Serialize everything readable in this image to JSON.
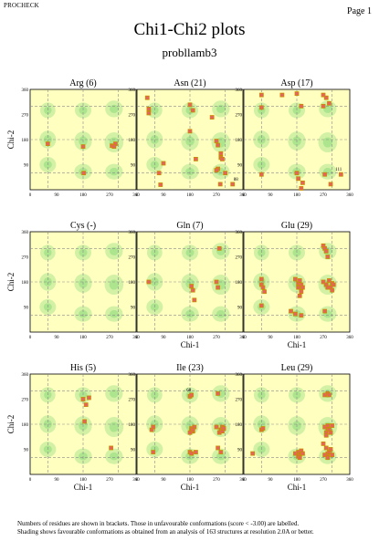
{
  "header": {
    "program": "PROCHECK",
    "page_label": "Page 1",
    "title": "Chi1-Chi2 plots",
    "subtitle": "probllamb3"
  },
  "footnote": {
    "line1": "Numbers of residues are shown in brackets. Those in unfavourable conformations (score < -3.00) are labelled.",
    "line2": "Shading shows favourable conformations as obtained from an analysis of 163 structures at resolution 2.0A or better."
  },
  "colors": {
    "background": "#ffffc0",
    "favourable_shading": "#5ccc5c",
    "point_fill": "#e86060",
    "point_outline": "#c89000",
    "gridline": "#8a8a8a"
  },
  "chart_data": [
    {
      "type": "scatter",
      "title": "Arg (6)",
      "xlabel": "",
      "ylabel": "Chi-2",
      "xlim": [
        0,
        360
      ],
      "ylim": [
        0,
        360
      ],
      "ticks": [
        "0",
        "90",
        "180",
        "270",
        "360"
      ],
      "points": [
        [
          60,
          165
        ],
        [
          180,
          155
        ],
        [
          278,
          158
        ],
        [
          290,
          165
        ],
        [
          182,
          60
        ],
        [
          285,
          155
        ]
      ],
      "labels": []
    },
    {
      "type": "scatter",
      "title": "Asn (21)",
      "xlabel": "",
      "ylabel": "",
      "xlim": [
        0,
        360
      ],
      "ylim": [
        0,
        360
      ],
      "ticks": [
        "0",
        "90",
        "180",
        "270",
        "360"
      ],
      "points": [
        [
          35,
          330
        ],
        [
          40,
          290
        ],
        [
          40,
          275
        ],
        [
          75,
          60
        ],
        [
          80,
          18
        ],
        [
          90,
          95
        ],
        [
          180,
          305
        ],
        [
          180,
          210
        ],
        [
          190,
          285
        ],
        [
          200,
          110
        ],
        [
          255,
          260
        ],
        [
          270,
          175
        ],
        [
          275,
          160
        ],
        [
          285,
          130
        ],
        [
          285,
          115
        ],
        [
          290,
          110
        ],
        [
          275,
          75
        ],
        [
          270,
          70
        ],
        [
          283,
          20
        ],
        [
          300,
          60
        ],
        [
          325,
          20
        ]
      ],
      "labels": [
        {
          "text": "88",
          "x": 336,
          "y": 32
        }
      ]
    },
    {
      "type": "scatter",
      "title": "Asp (17)",
      "xlabel": "",
      "ylabel": "",
      "xlim": [
        0,
        360
      ],
      "ylim": [
        0,
        360
      ],
      "ticks": [
        "0",
        "90",
        "180",
        "270",
        "360"
      ],
      "points": [
        [
          60,
          340
        ],
        [
          60,
          295
        ],
        [
          60,
          55
        ],
        [
          130,
          340
        ],
        [
          180,
          345
        ],
        [
          195,
          300
        ],
        [
          180,
          60
        ],
        [
          185,
          40
        ],
        [
          195,
          5
        ],
        [
          200,
          25
        ],
        [
          270,
          340
        ],
        [
          270,
          300
        ],
        [
          275,
          55
        ],
        [
          280,
          330
        ],
        [
          290,
          310
        ],
        [
          295,
          20
        ],
        [
          330,
          55
        ]
      ],
      "labels": [
        {
          "text": "111",
          "x": 322,
          "y": 68
        }
      ]
    },
    {
      "type": "scatter",
      "title": "Cys (-)",
      "xlabel": "",
      "ylabel": "Chi-2",
      "xlim": [
        0,
        360
      ],
      "ylim": [
        0,
        360
      ],
      "ticks": [
        "0",
        "90",
        "180",
        "270",
        "360"
      ],
      "points": [],
      "labels": []
    },
    {
      "type": "scatter",
      "title": "Gln (7)",
      "xlabel": "Chi-1",
      "ylabel": "",
      "xlim": [
        0,
        360
      ],
      "ylim": [
        0,
        360
      ],
      "ticks": [
        "0",
        "90",
        "180",
        "270",
        "360"
      ],
      "points": [
        [
          40,
          180
        ],
        [
          185,
          165
        ],
        [
          270,
          180
        ],
        [
          280,
          300
        ],
        [
          195,
          115
        ],
        [
          190,
          150
        ],
        [
          275,
          160
        ]
      ],
      "labels": []
    },
    {
      "type": "scatter",
      "title": "Glu (29)",
      "xlabel": "Chi-1",
      "ylabel": "",
      "xlim": [
        0,
        360
      ],
      "ylim": [
        0,
        360
      ],
      "ticks": [
        "0",
        "90",
        "180",
        "270",
        "360"
      ],
      "points": [
        [
          60,
          190
        ],
        [
          60,
          170
        ],
        [
          65,
          160
        ],
        [
          60,
          95
        ],
        [
          70,
          145
        ],
        [
          175,
          190
        ],
        [
          185,
          160
        ],
        [
          185,
          175
        ],
        [
          190,
          185
        ],
        [
          195,
          170
        ],
        [
          190,
          130
        ],
        [
          195,
          145
        ],
        [
          200,
          160
        ],
        [
          160,
          75
        ],
        [
          175,
          65
        ],
        [
          195,
          60
        ],
        [
          270,
          310
        ],
        [
          275,
          300
        ],
        [
          280,
          290
        ],
        [
          285,
          270
        ],
        [
          270,
          180
        ],
        [
          280,
          170
        ],
        [
          285,
          160
        ],
        [
          290,
          185
        ],
        [
          300,
          175
        ],
        [
          275,
          75
        ],
        [
          305,
          170
        ],
        [
          295,
          160
        ],
        [
          300,
          150
        ]
      ],
      "labels": []
    },
    {
      "type": "scatter",
      "title": "His (5)",
      "xlabel": "Chi-1",
      "ylabel": "Chi-2",
      "xlim": [
        0,
        360
      ],
      "ylim": [
        0,
        360
      ],
      "ticks": [
        "0",
        "90",
        "180",
        "270",
        "360"
      ],
      "points": [
        [
          180,
          270
        ],
        [
          190,
          250
        ],
        [
          200,
          275
        ],
        [
          185,
          190
        ],
        [
          275,
          95
        ]
      ],
      "labels": []
    },
    {
      "type": "scatter",
      "title": "Ile (23)",
      "xlabel": "Chi-1",
      "ylabel": "",
      "xlim": [
        0,
        360
      ],
      "ylim": [
        0,
        360
      ],
      "ticks": [
        "0",
        "90",
        "180",
        "270",
        "360"
      ],
      "points": [
        [
          180,
          280
        ],
        [
          185,
          285
        ],
        [
          275,
          290
        ],
        [
          50,
          160
        ],
        [
          55,
          170
        ],
        [
          185,
          165
        ],
        [
          185,
          160
        ],
        [
          190,
          155
        ],
        [
          195,
          170
        ],
        [
          285,
          160
        ],
        [
          290,
          170
        ],
        [
          280,
          150
        ],
        [
          290,
          155
        ],
        [
          295,
          165
        ],
        [
          270,
          170
        ],
        [
          55,
          80
        ],
        [
          180,
          80
        ],
        [
          185,
          75
        ],
        [
          200,
          80
        ],
        [
          275,
          95
        ],
        [
          285,
          80
        ],
        [
          190,
          160
        ],
        [
          180,
          150
        ]
      ],
      "labels": [
        {
          "text": "60",
          "x": 176,
          "y": 298
        }
      ]
    },
    {
      "type": "scatter",
      "title": "Leu (29)",
      "xlabel": "Chi-1",
      "ylabel": "",
      "xlim": [
        0,
        360
      ],
      "ylim": [
        0,
        360
      ],
      "ticks": [
        "0",
        "90",
        "180",
        "270",
        "360"
      ],
      "points": [
        [
          60,
          160
        ],
        [
          65,
          165
        ],
        [
          175,
          75
        ],
        [
          185,
          80
        ],
        [
          190,
          70
        ],
        [
          195,
          85
        ],
        [
          200,
          75
        ],
        [
          185,
          65
        ],
        [
          275,
          285
        ],
        [
          285,
          290
        ],
        [
          290,
          285
        ],
        [
          275,
          170
        ],
        [
          285,
          165
        ],
        [
          290,
          160
        ],
        [
          280,
          150
        ],
        [
          295,
          150
        ],
        [
          300,
          175
        ],
        [
          285,
          175
        ],
        [
          280,
          140
        ],
        [
          275,
          70
        ],
        [
          285,
          75
        ],
        [
          290,
          80
        ],
        [
          295,
          90
        ],
        [
          300,
          70
        ],
        [
          285,
          60
        ],
        [
          270,
          110
        ],
        [
          280,
          95
        ],
        [
          30,
          75
        ],
        [
          190,
          60
        ]
      ],
      "labels": []
    }
  ]
}
